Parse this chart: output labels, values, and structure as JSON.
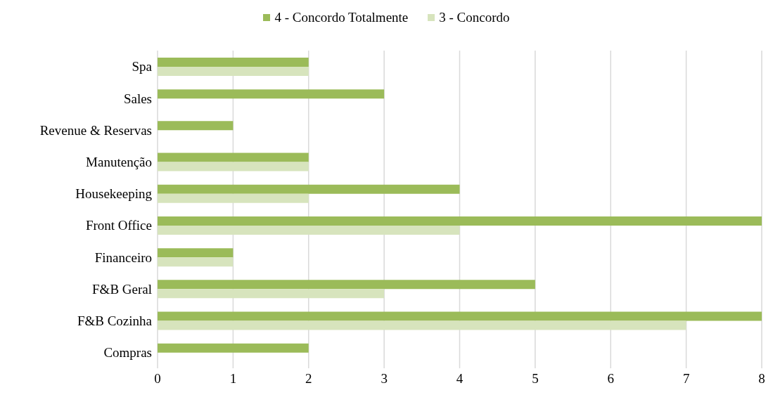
{
  "chart_data": {
    "type": "bar",
    "orientation": "horizontal",
    "categories": [
      "Spa",
      "Sales",
      "Revenue & Reservas",
      "Manutenção",
      "Housekeeping",
      "Front Office",
      "Financeiro",
      "F&B Geral",
      "F&B Cozinha",
      "Compras"
    ],
    "series": [
      {
        "name": "4 - Concordo Totalmente",
        "color": "#9bbb59",
        "values": [
          2,
          3,
          1,
          2,
          4,
          8,
          1,
          5,
          8,
          2
        ]
      },
      {
        "name": "3 - Concordo",
        "color": "#d7e4bd",
        "values": [
          2,
          0,
          0,
          2,
          2,
          4,
          1,
          3,
          7,
          0
        ]
      }
    ],
    "xlim": [
      0,
      8
    ],
    "xticks": [
      0,
      1,
      2,
      3,
      4,
      5,
      6,
      7,
      8
    ],
    "grid": "x",
    "legend": "top"
  }
}
